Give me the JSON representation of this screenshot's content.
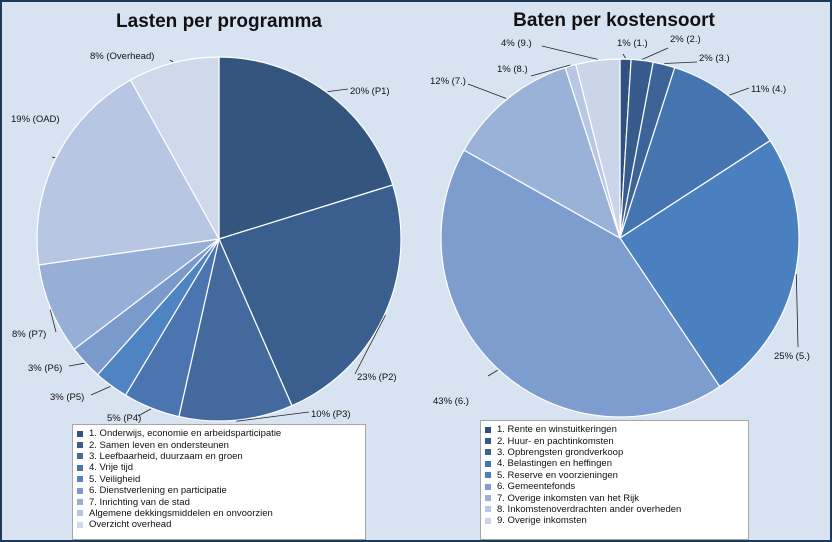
{
  "chart_data": [
    {
      "type": "pie",
      "title": "Lasten per programma",
      "values": [
        20,
        23,
        10,
        5,
        3,
        3,
        8,
        19,
        8
      ],
      "data_labels": [
        "20% (P1)",
        "23% (P2)",
        "10% (P3)",
        "5% (P4)",
        "3% (P5)",
        "3% (P6)",
        "8% (P7)",
        "19% (OAD)",
        "8% (Overhead)"
      ],
      "categories": [
        "1. Onderwijs, economie en arbeidsparticipatie",
        "2. Samen leven en ondersteunen",
        "3. Leefbaarheid, duurzaam en groen",
        "4. Vrije tijd",
        "5. Veiligheid",
        "6. Dienstverlening en participatie",
        "7. Inrichting van de stad",
        "Algemene dekkingsmiddelen en onvoorzien",
        "Overzicht overhead"
      ],
      "colors": [
        "#34557d",
        "#3a5f8e",
        "#44699c",
        "#4b75b0",
        "#4f84c2",
        "#7b9acc",
        "#97aed7",
        "#b7c6e3",
        "#d0d9ec"
      ],
      "legend_position": "bottom"
    },
    {
      "type": "pie",
      "title": "Baten per kostensoort",
      "values": [
        1,
        2,
        2,
        11,
        25,
        43,
        12,
        1,
        4
      ],
      "data_labels": [
        "1% (1.)",
        "2% (2.)",
        "2% (3.)",
        "11% (4.)",
        "25% (5.)",
        "43% (6.)",
        "12% (7.)",
        "1% (8.)",
        "4% (9.)"
      ],
      "categories": [
        "1. Rente en winstuitkeringen",
        "2. Huur- en pachtinkomsten",
        "3. Opbrengsten grondverkoop",
        "4. Belastingen en heffingen",
        "5. Reserve en voorzieningen",
        "6. Gemeentefonds",
        "7. Overige inkomsten van het Rijk",
        "8. Inkomstenoverdrachten ander overheden",
        "9. Overige inkomsten"
      ],
      "colors": [
        "#2f5180",
        "#365b8c",
        "#3c6499",
        "#4575b1",
        "#4b80c0",
        "#7c9dce",
        "#9bb2d8",
        "#b8c7e4",
        "#cad5ea"
      ],
      "legend_position": "bottom"
    }
  ]
}
